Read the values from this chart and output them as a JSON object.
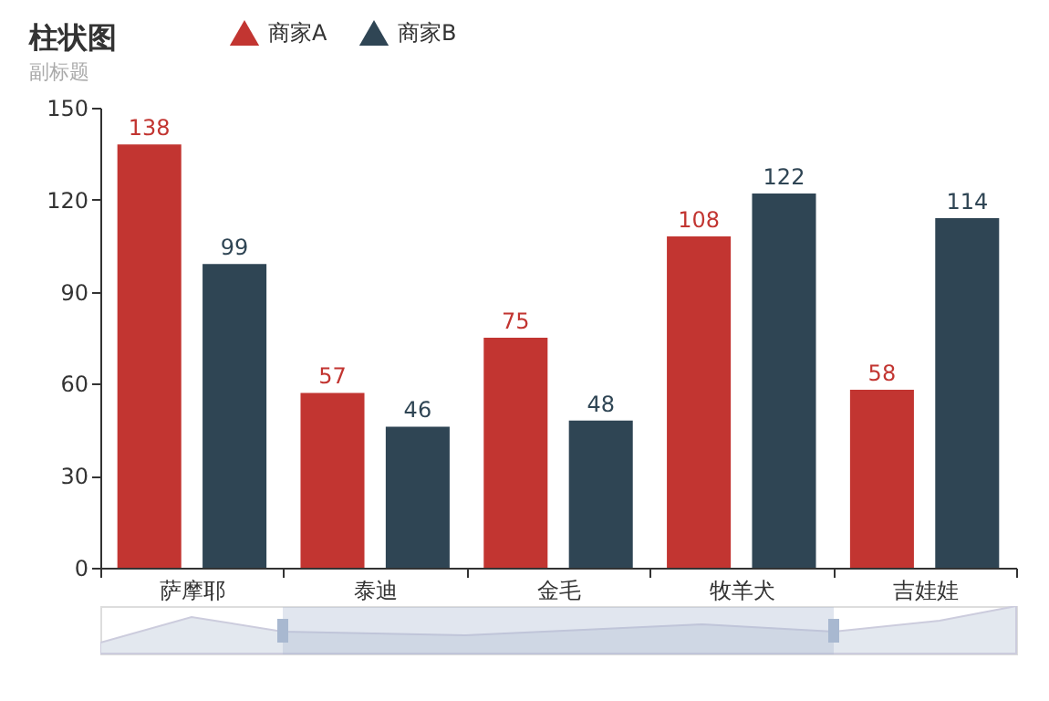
{
  "chart_data": {
    "type": "bar",
    "title": "柱状图",
    "subtitle": "副标题",
    "categories": [
      "萨摩耶",
      "泰迪",
      "金毛",
      "牧羊犬",
      "吉娃娃"
    ],
    "series": [
      {
        "name": "商家A",
        "color": "#c23531",
        "values": [
          138,
          57,
          75,
          108,
          58
        ]
      },
      {
        "name": "商家B",
        "color": "#2f4554",
        "values": [
          99,
          46,
          48,
          122,
          114
        ]
      }
    ],
    "ylim": [
      0,
      150
    ],
    "yticks": [
      0,
      30,
      60,
      90,
      120,
      150
    ],
    "grid": false,
    "legend": "top",
    "data_labels": true
  }
}
